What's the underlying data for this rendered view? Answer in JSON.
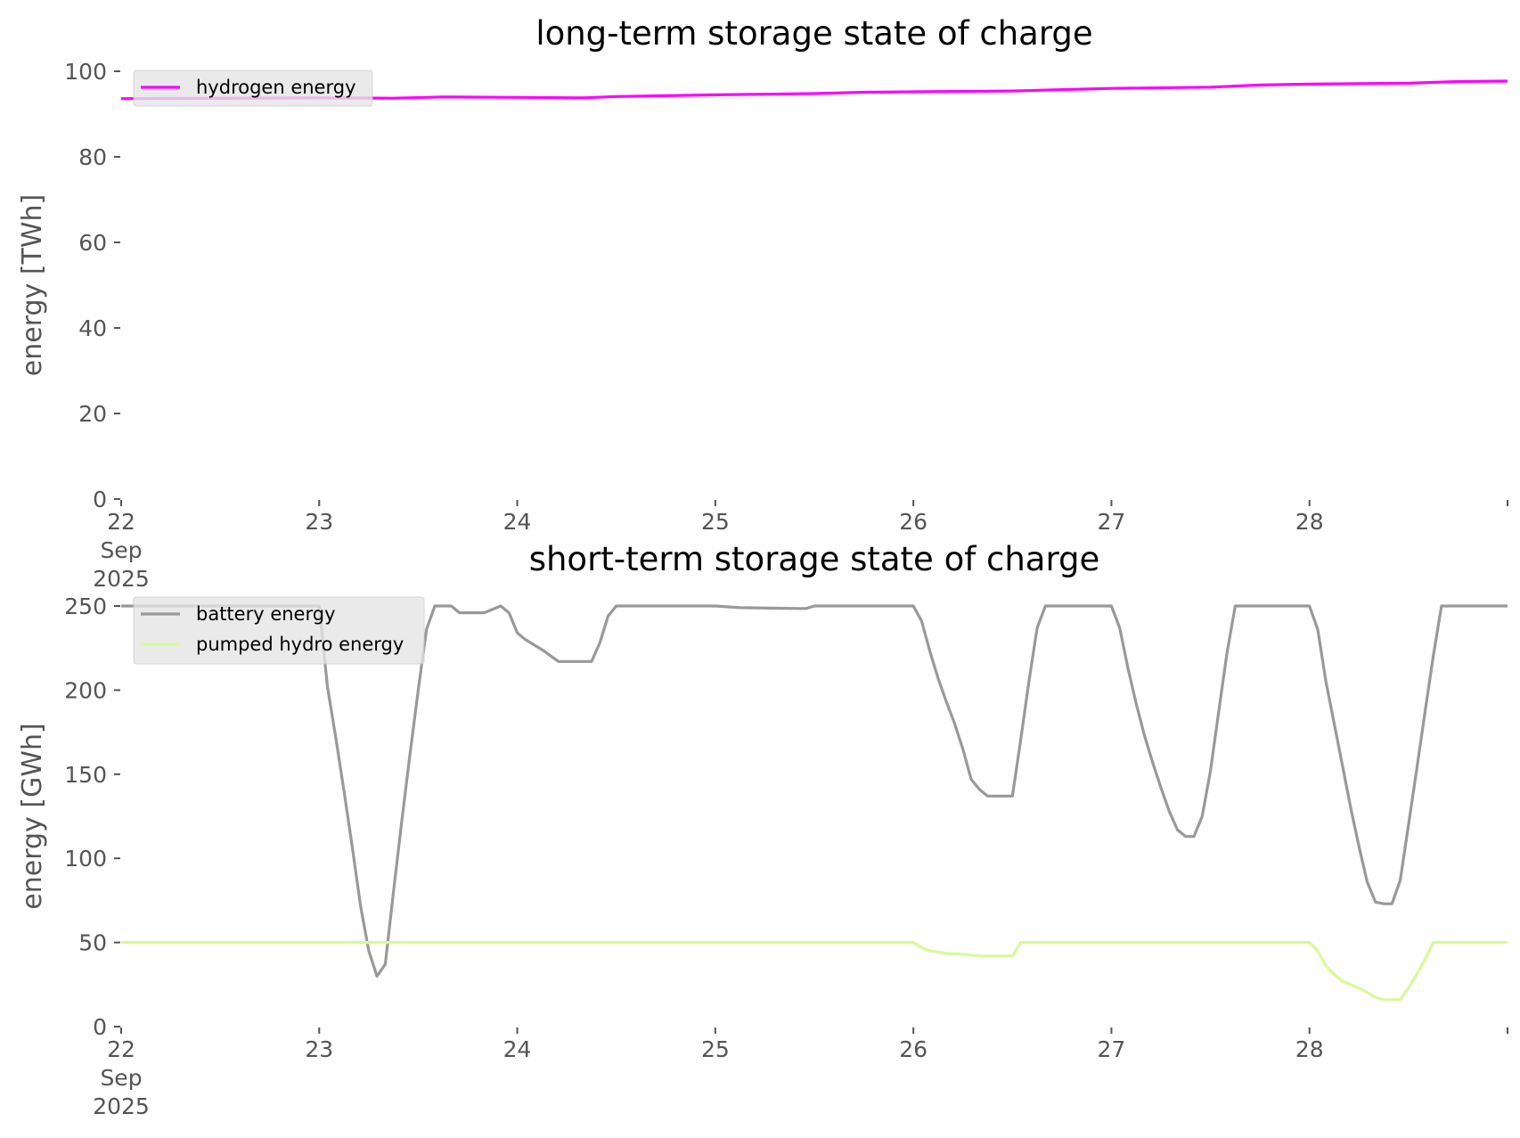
{
  "chart_data": [
    {
      "type": "line",
      "title": "long-term storage state of charge",
      "xlabel": "",
      "ylabel": "energy [TWh]",
      "ylim": [
        0,
        100
      ],
      "yticks": [
        0,
        20,
        40,
        60,
        80,
        100
      ],
      "xlim": [
        "2025-09-22",
        "2025-09-29"
      ],
      "xticks": [
        {
          "date": "2025-09-22",
          "label": [
            "22",
            "Sep",
            "2025"
          ]
        },
        {
          "date": "2025-09-23",
          "label": [
            "23"
          ]
        },
        {
          "date": "2025-09-24",
          "label": [
            "24"
          ]
        },
        {
          "date": "2025-09-25",
          "label": [
            "25"
          ]
        },
        {
          "date": "2025-09-26",
          "label": [
            "26"
          ]
        },
        {
          "date": "2025-09-27",
          "label": [
            "27"
          ]
        },
        {
          "date": "2025-09-28",
          "label": [
            "28"
          ]
        }
      ],
      "grid": false,
      "legend_position": "upper-left",
      "series": [
        {
          "name": "hydrogen energy",
          "color": "#ff00ff",
          "points": [
            [
              "2025-09-22 00:00",
              93.6
            ],
            [
              "2025-09-23 00:00",
              93.8
            ],
            [
              "2025-09-23 09:00",
              93.7
            ],
            [
              "2025-09-23 15:00",
              94.0
            ],
            [
              "2025-09-24 00:00",
              93.9
            ],
            [
              "2025-09-24 08:00",
              93.8
            ],
            [
              "2025-09-24 12:00",
              94.1
            ],
            [
              "2025-09-24 18:00",
              94.3
            ],
            [
              "2025-09-25 00:00",
              94.5
            ],
            [
              "2025-09-25 12:00",
              94.8
            ],
            [
              "2025-09-25 18:00",
              95.1
            ],
            [
              "2025-09-26 00:00",
              95.2
            ],
            [
              "2025-09-26 12:00",
              95.4
            ],
            [
              "2025-09-26 18:00",
              95.7
            ],
            [
              "2025-09-27 00:00",
              96.0
            ],
            [
              "2025-09-27 12:00",
              96.3
            ],
            [
              "2025-09-27 18:00",
              96.8
            ],
            [
              "2025-09-28 00:00",
              97.0
            ],
            [
              "2025-09-28 12:00",
              97.2
            ],
            [
              "2025-09-28 18:00",
              97.6
            ],
            [
              "2025-09-29 00:00",
              97.7
            ]
          ]
        }
      ]
    },
    {
      "type": "line",
      "title": "short-term storage state of charge",
      "xlabel": "",
      "ylabel": "energy [GWh]",
      "ylim": [
        0,
        250
      ],
      "yticks": [
        0,
        50,
        100,
        150,
        200,
        250
      ],
      "xlim": [
        "2025-09-22",
        "2025-09-29"
      ],
      "xticks": [
        {
          "date": "2025-09-22",
          "label": [
            "22",
            "Sep",
            "2025"
          ]
        },
        {
          "date": "2025-09-23",
          "label": [
            "23"
          ]
        },
        {
          "date": "2025-09-24",
          "label": [
            "24"
          ]
        },
        {
          "date": "2025-09-25",
          "label": [
            "25"
          ]
        },
        {
          "date": "2025-09-26",
          "label": [
            "26"
          ]
        },
        {
          "date": "2025-09-27",
          "label": [
            "27"
          ]
        },
        {
          "date": "2025-09-28",
          "label": [
            "28"
          ]
        }
      ],
      "grid": false,
      "legend_position": "upper-left",
      "series": [
        {
          "name": "battery energy",
          "color": "#999999",
          "points": [
            [
              "2025-09-22 00:00",
              250
            ],
            [
              "2025-09-23 00:00",
              250
            ],
            [
              "2025-09-23 01:00",
              202
            ],
            [
              "2025-09-23 02:00",
              172
            ],
            [
              "2025-09-23 03:00",
              140
            ],
            [
              "2025-09-23 04:00",
              107
            ],
            [
              "2025-09-23 05:00",
              72
            ],
            [
              "2025-09-23 06:00",
              45
            ],
            [
              "2025-09-23 07:00",
              30
            ],
            [
              "2025-09-23 08:00",
              37
            ],
            [
              "2025-09-23 09:00",
              80
            ],
            [
              "2025-09-23 10:00",
              122
            ],
            [
              "2025-09-23 11:00",
              162
            ],
            [
              "2025-09-23 12:00",
              200
            ],
            [
              "2025-09-23 13:00",
              236
            ],
            [
              "2025-09-23 14:00",
              250
            ],
            [
              "2025-09-23 16:00",
              250
            ],
            [
              "2025-09-23 17:00",
              246
            ],
            [
              "2025-09-23 20:00",
              246
            ],
            [
              "2025-09-23 22:00",
              250
            ],
            [
              "2025-09-23 23:00",
              246
            ],
            [
              "2025-09-24 00:00",
              234
            ],
            [
              "2025-09-24 01:00",
              230
            ],
            [
              "2025-09-24 03:00",
              224
            ],
            [
              "2025-09-24 05:00",
              217
            ],
            [
              "2025-09-24 09:00",
              217
            ],
            [
              "2025-09-24 10:00",
              228
            ],
            [
              "2025-09-24 11:00",
              244
            ],
            [
              "2025-09-24 12:00",
              250
            ],
            [
              "2025-09-25 00:00",
              250
            ],
            [
              "2025-09-25 03:00",
              249
            ],
            [
              "2025-09-25 10:00",
              248.5
            ],
            [
              "2025-09-25 11:00",
              248.5
            ],
            [
              "2025-09-25 12:00",
              250
            ],
            [
              "2025-09-26 00:00",
              250
            ],
            [
              "2025-09-26 01:00",
              241
            ],
            [
              "2025-09-26 02:00",
              223
            ],
            [
              "2025-09-26 03:00",
              207
            ],
            [
              "2025-09-26 04:00",
              193
            ],
            [
              "2025-09-26 05:00",
              180
            ],
            [
              "2025-09-26 06:00",
              165
            ],
            [
              "2025-09-26 07:00",
              147
            ],
            [
              "2025-09-26 08:00",
              141
            ],
            [
              "2025-09-26 09:00",
              137
            ],
            [
              "2025-09-26 12:00",
              137
            ],
            [
              "2025-09-26 13:00",
              170
            ],
            [
              "2025-09-26 14:00",
              205
            ],
            [
              "2025-09-26 15:00",
              237
            ],
            [
              "2025-09-26 16:00",
              250
            ],
            [
              "2025-09-27 00:00",
              250
            ],
            [
              "2025-09-27 01:00",
              237
            ],
            [
              "2025-09-27 02:00",
              213
            ],
            [
              "2025-09-27 03:00",
              192
            ],
            [
              "2025-09-27 04:00",
              173
            ],
            [
              "2025-09-27 05:00",
              157
            ],
            [
              "2025-09-27 06:00",
              142
            ],
            [
              "2025-09-27 07:00",
              128
            ],
            [
              "2025-09-27 08:00",
              117
            ],
            [
              "2025-09-27 09:00",
              113
            ],
            [
              "2025-09-27 10:00",
              113
            ],
            [
              "2025-09-27 11:00",
              125
            ],
            [
              "2025-09-27 12:00",
              152
            ],
            [
              "2025-09-27 13:00",
              187
            ],
            [
              "2025-09-27 14:00",
              222
            ],
            [
              "2025-09-27 15:00",
              250
            ],
            [
              "2025-09-28 00:00",
              250
            ],
            [
              "2025-09-28 01:00",
              236
            ],
            [
              "2025-09-28 02:00",
              205
            ],
            [
              "2025-09-28 03:00",
              180
            ],
            [
              "2025-09-28 04:00",
              155
            ],
            [
              "2025-09-28 05:00",
              130
            ],
            [
              "2025-09-28 06:00",
              107
            ],
            [
              "2025-09-28 07:00",
              86
            ],
            [
              "2025-09-28 08:00",
              74
            ],
            [
              "2025-09-28 09:00",
              73
            ],
            [
              "2025-09-28 10:00",
              73
            ],
            [
              "2025-09-28 11:00",
              87
            ],
            [
              "2025-09-28 12:00",
              120
            ],
            [
              "2025-09-28 13:00",
              153
            ],
            [
              "2025-09-28 14:00",
              187
            ],
            [
              "2025-09-28 15:00",
              220
            ],
            [
              "2025-09-28 16:00",
              250
            ],
            [
              "2025-09-29 00:00",
              250
            ]
          ]
        },
        {
          "name": "pumped hydro energy",
          "color": "#d9f99b",
          "points": [
            [
              "2025-09-22 00:00",
              50
            ],
            [
              "2025-09-26 00:00",
              50
            ],
            [
              "2025-09-26 01:00",
              47
            ],
            [
              "2025-09-26 02:00",
              45
            ],
            [
              "2025-09-26 04:00",
              43.5
            ],
            [
              "2025-09-26 06:00",
              43
            ],
            [
              "2025-09-26 08:00",
              42
            ],
            [
              "2025-09-26 12:00",
              42
            ],
            [
              "2025-09-26 13:00",
              50
            ],
            [
              "2025-09-28 00:00",
              50
            ],
            [
              "2025-09-28 01:00",
              45
            ],
            [
              "2025-09-28 02:00",
              36
            ],
            [
              "2025-09-28 03:00",
              31
            ],
            [
              "2025-09-28 04:00",
              27
            ],
            [
              "2025-09-28 06:00",
              23
            ],
            [
              "2025-09-28 08:00",
              17.5
            ],
            [
              "2025-09-28 09:00",
              16
            ],
            [
              "2025-09-28 11:00",
              16
            ],
            [
              "2025-09-28 12:00",
              23
            ],
            [
              "2025-09-28 13:00",
              31
            ],
            [
              "2025-09-28 14:00",
              40
            ],
            [
              "2025-09-28 15:00",
              50
            ],
            [
              "2025-09-29 00:00",
              50
            ]
          ]
        }
      ]
    }
  ]
}
